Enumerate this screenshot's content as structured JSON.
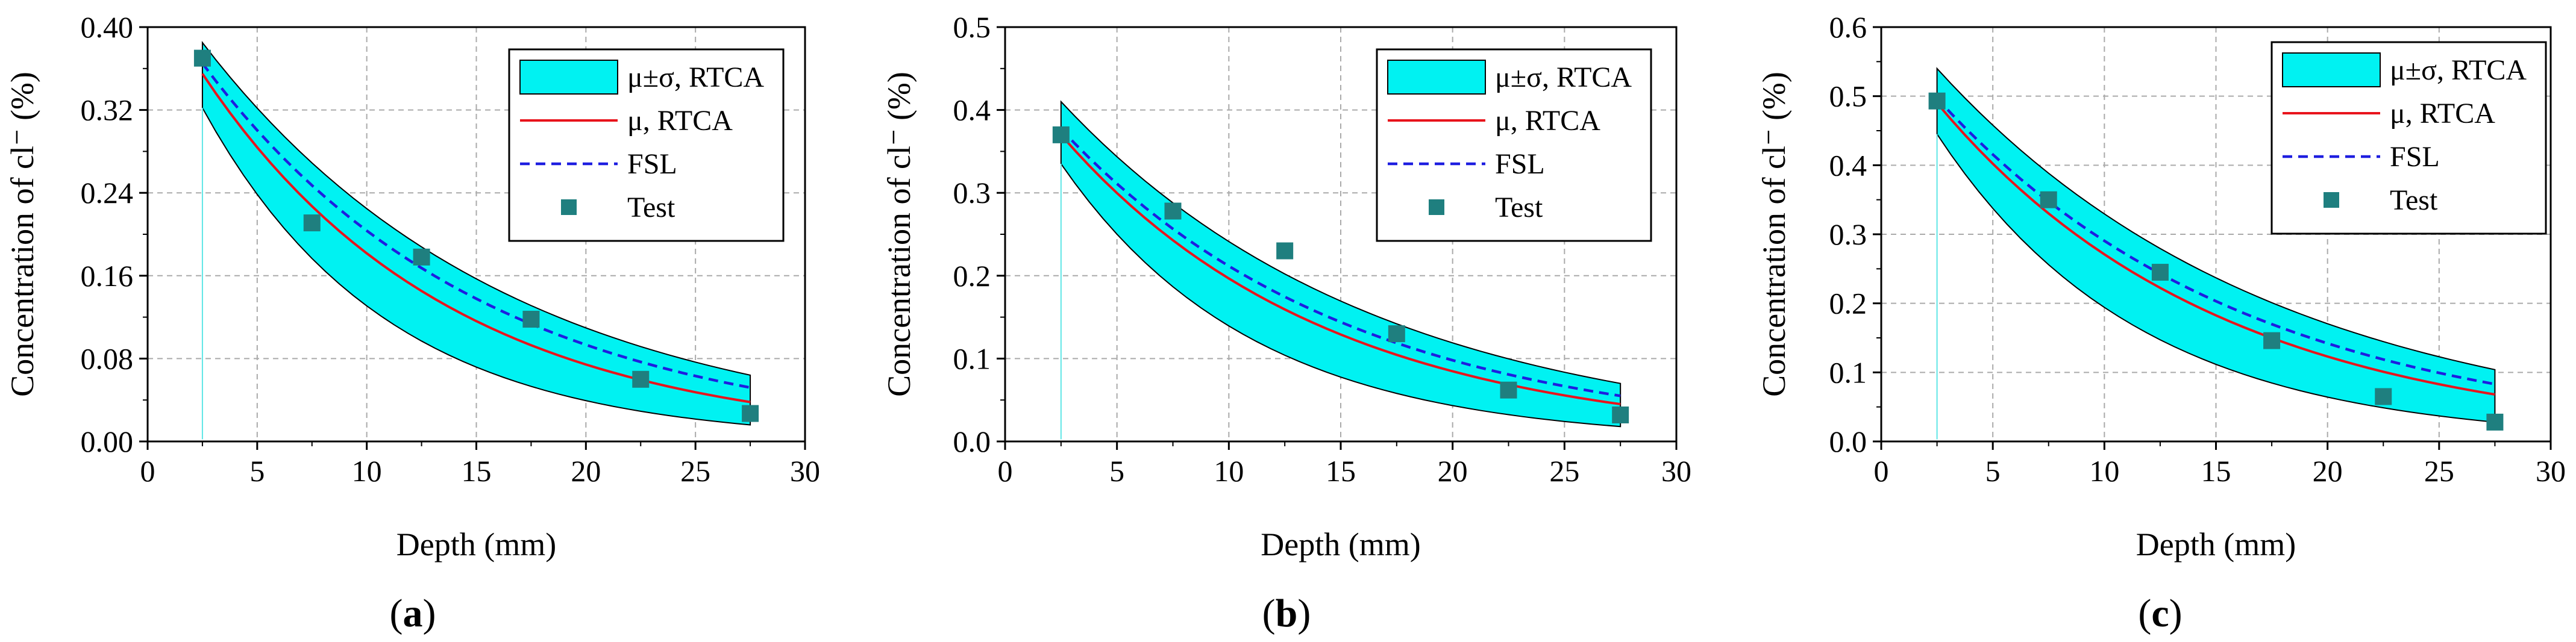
{
  "chart_data": [
    {
      "type": "line",
      "panel_label": "(a)",
      "panel_letter": "a",
      "xlabel": "Depth (mm)",
      "ylabel": "Concentration of cl⁻ (%)",
      "xlim": [
        0,
        30
      ],
      "ylim": [
        0,
        0.4
      ],
      "xticks": [
        "0",
        "5",
        "10",
        "15",
        "20",
        "25",
        "30"
      ],
      "yticks": [
        "0.00",
        "0.08",
        "0.16",
        "0.24",
        "0.32",
        "0.40"
      ],
      "x": [
        2.5,
        27.5
      ],
      "mean": [
        0.355,
        0.038
      ],
      "sigma_upper": [
        0.385,
        0.064
      ],
      "sigma_lower": [
        0.322,
        0.016
      ],
      "fsl": [
        0.365,
        0.052
      ],
      "test": {
        "x": [
          2.5,
          7.5,
          12.5,
          17.5,
          22.5,
          27.5
        ],
        "y": [
          0.37,
          0.211,
          0.178,
          0.118,
          0.06,
          0.027
        ]
      },
      "legend": {
        "position": "top-right",
        "entries": [
          "μ±σ, RTCA",
          "μ, RTCA",
          "FSL",
          "Test"
        ]
      }
    },
    {
      "type": "line",
      "panel_label": "(b)",
      "panel_letter": "b",
      "xlabel": "Depth (mm)",
      "ylabel": "Concentration of cl⁻ (%)",
      "xlim": [
        0,
        30
      ],
      "ylim": [
        0,
        0.5
      ],
      "xticks": [
        "0",
        "5",
        "10",
        "15",
        "20",
        "25",
        "30"
      ],
      "yticks": [
        "0.0",
        "0.1",
        "0.2",
        "0.3",
        "0.4",
        "0.5"
      ],
      "x": [
        2.5,
        27.5
      ],
      "mean": [
        0.37,
        0.045
      ],
      "sigma_upper": [
        0.41,
        0.07
      ],
      "sigma_lower": [
        0.335,
        0.018
      ],
      "fsl": [
        0.377,
        0.055
      ],
      "test": {
        "x": [
          2.5,
          7.5,
          12.5,
          17.5,
          22.5,
          27.5
        ],
        "y": [
          0.37,
          0.278,
          0.23,
          0.13,
          0.062,
          0.032
        ]
      },
      "legend": {
        "position": "top-right",
        "entries": [
          "μ±σ, RTCA",
          "μ, RTCA",
          "FSL",
          "Test"
        ]
      }
    },
    {
      "type": "line",
      "panel_label": "(c)",
      "panel_letter": "c",
      "xlabel": "Depth (mm)",
      "ylabel": "Concentration of cl⁻ (%)",
      "xlim": [
        0,
        30
      ],
      "ylim": [
        0,
        0.6
      ],
      "xticks": [
        "0",
        "5",
        "10",
        "15",
        "20",
        "25",
        "30"
      ],
      "yticks": [
        "0.0",
        "0.1",
        "0.2",
        "0.3",
        "0.4",
        "0.5",
        "0.6"
      ],
      "x": [
        2.5,
        27.5
      ],
      "mean": [
        0.49,
        0.068
      ],
      "sigma_upper": [
        0.54,
        0.104
      ],
      "sigma_lower": [
        0.445,
        0.028
      ],
      "fsl": [
        0.497,
        0.083
      ],
      "test": {
        "x": [
          2.5,
          7.5,
          12.5,
          17.5,
          22.5,
          27.5
        ],
        "y": [
          0.493,
          0.35,
          0.245,
          0.146,
          0.065,
          0.028
        ]
      },
      "legend": {
        "position": "top-right",
        "entries": [
          "μ±σ, RTCA",
          "μ, RTCA",
          "FSL",
          "Test"
        ]
      }
    }
  ],
  "colors": {
    "band": "#00F2F2",
    "band_edge": "#000000",
    "mean_line": "#E8141C",
    "fsl_line": "#1E1EE0",
    "test_marker": "#1F7F7F",
    "grid": "#AAAAAA",
    "vline": "#5EE6E6"
  }
}
